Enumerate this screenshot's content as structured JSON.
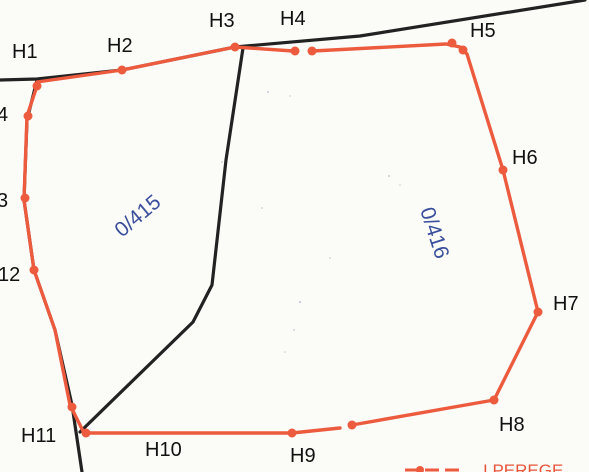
{
  "point_labels": {
    "H1": "H1",
    "H2": "H2",
    "H3": "H3",
    "H4": "H4",
    "H5": "H5",
    "H6": "H6",
    "H7": "H7",
    "H8": "H8",
    "H9": "H9",
    "H10": "H10",
    "H11": "H11",
    "H12": "12",
    "H13": "3",
    "H14": "4"
  },
  "parcels": {
    "left": "0/415",
    "right": "0/416"
  },
  "legend": {
    "partial_text": "I PEREGE"
  },
  "colors": {
    "boundary_black": "#222222",
    "boundary_red": "#ec5b3e",
    "parcel_text": "#3a4f9c"
  }
}
